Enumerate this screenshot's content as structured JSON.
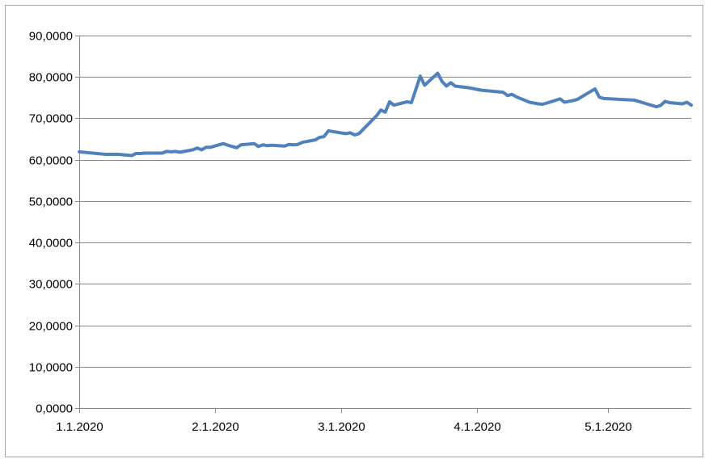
{
  "chart_data": {
    "type": "line",
    "title": "",
    "xlabel": "",
    "ylabel": "",
    "x_tick_labels": [
      "1.1.2020",
      "2.1.2020",
      "3.1.2020",
      "4.1.2020",
      "5.1.2020"
    ],
    "x_ticks": [
      "2020-01-01",
      "2020-02-01",
      "2020-03-01",
      "2020-04-01",
      "2020-05-01"
    ],
    "xlim": [
      "2020-01-01",
      "2020-05-20"
    ],
    "y_tick_labels": [
      "0,0000",
      "10,0000",
      "20,0000",
      "30,0000",
      "40,0000",
      "50,0000",
      "60,0000",
      "70,0000",
      "80,0000",
      "90,0000"
    ],
    "y_ticks": [
      0,
      10,
      20,
      30,
      40,
      50,
      60,
      70,
      80,
      90
    ],
    "ylim": [
      0,
      90
    ],
    "grid": "horizontal",
    "legend": "none",
    "line_color": "#4f81bd",
    "series": [
      {
        "x": [
          "2020-01-01",
          "2020-01-07",
          "2020-01-10",
          "2020-01-13",
          "2020-01-14",
          "2020-01-15",
          "2020-01-16",
          "2020-01-17",
          "2020-01-20",
          "2020-01-21",
          "2020-01-22",
          "2020-01-23",
          "2020-01-24",
          "2020-01-27",
          "2020-01-28",
          "2020-01-29",
          "2020-01-30",
          "2020-01-31",
          "2020-02-03",
          "2020-02-04",
          "2020-02-05",
          "2020-02-06",
          "2020-02-07",
          "2020-02-10",
          "2020-02-11",
          "2020-02-12",
          "2020-02-13",
          "2020-02-14",
          "2020-02-17",
          "2020-02-18",
          "2020-02-19",
          "2020-02-20",
          "2020-02-21",
          "2020-02-24",
          "2020-02-25",
          "2020-02-26",
          "2020-02-27",
          "2020-02-28",
          "2020-03-02",
          "2020-03-03",
          "2020-03-04",
          "2020-03-05",
          "2020-03-06",
          "2020-03-09",
          "2020-03-10",
          "2020-03-11",
          "2020-03-12",
          "2020-03-13",
          "2020-03-16",
          "2020-03-17",
          "2020-03-18",
          "2020-03-19",
          "2020-03-20",
          "2020-03-23",
          "2020-03-24",
          "2020-03-25",
          "2020-03-26",
          "2020-03-27",
          "2020-03-30",
          "2020-03-31",
          "2020-04-01",
          "2020-04-02",
          "2020-04-03",
          "2020-04-07",
          "2020-04-08",
          "2020-04-09",
          "2020-04-10",
          "2020-04-13",
          "2020-04-14",
          "2020-04-15",
          "2020-04-16",
          "2020-04-17",
          "2020-04-20",
          "2020-04-21",
          "2020-04-22",
          "2020-04-23",
          "2020-04-24",
          "2020-04-27",
          "2020-04-28",
          "2020-04-29",
          "2020-04-30",
          "2020-05-07",
          "2020-05-12",
          "2020-05-13",
          "2020-05-14",
          "2020-05-15",
          "2020-05-18",
          "2020-05-19",
          "2020-05-20"
        ],
        "values": [
          61.9,
          61.3,
          61.3,
          61.0,
          61.5,
          61.5,
          61.6,
          61.6,
          61.6,
          62.0,
          61.9,
          62.0,
          61.8,
          62.4,
          62.8,
          62.4,
          63.0,
          63.0,
          63.9,
          63.5,
          63.2,
          62.9,
          63.6,
          63.9,
          63.2,
          63.6,
          63.4,
          63.5,
          63.3,
          63.7,
          63.6,
          63.7,
          64.2,
          64.8,
          65.4,
          65.6,
          67.0,
          66.8,
          66.3,
          66.5,
          66.0,
          66.3,
          67.4,
          70.6,
          72.0,
          71.5,
          74.0,
          73.2,
          74.0,
          73.8,
          77.0,
          80.2,
          78.0,
          80.9,
          78.9,
          77.8,
          78.6,
          77.8,
          77.4,
          77.2,
          77.0,
          76.8,
          76.7,
          76.3,
          75.5,
          75.8,
          75.2,
          73.9,
          73.7,
          73.5,
          73.4,
          73.7,
          74.7,
          73.9,
          74.1,
          74.3,
          74.6,
          76.5,
          77.1,
          75.1,
          74.8,
          74.4,
          72.8,
          73.1,
          74.1,
          73.8,
          73.5,
          73.9,
          73.2
        ]
      }
    ]
  }
}
